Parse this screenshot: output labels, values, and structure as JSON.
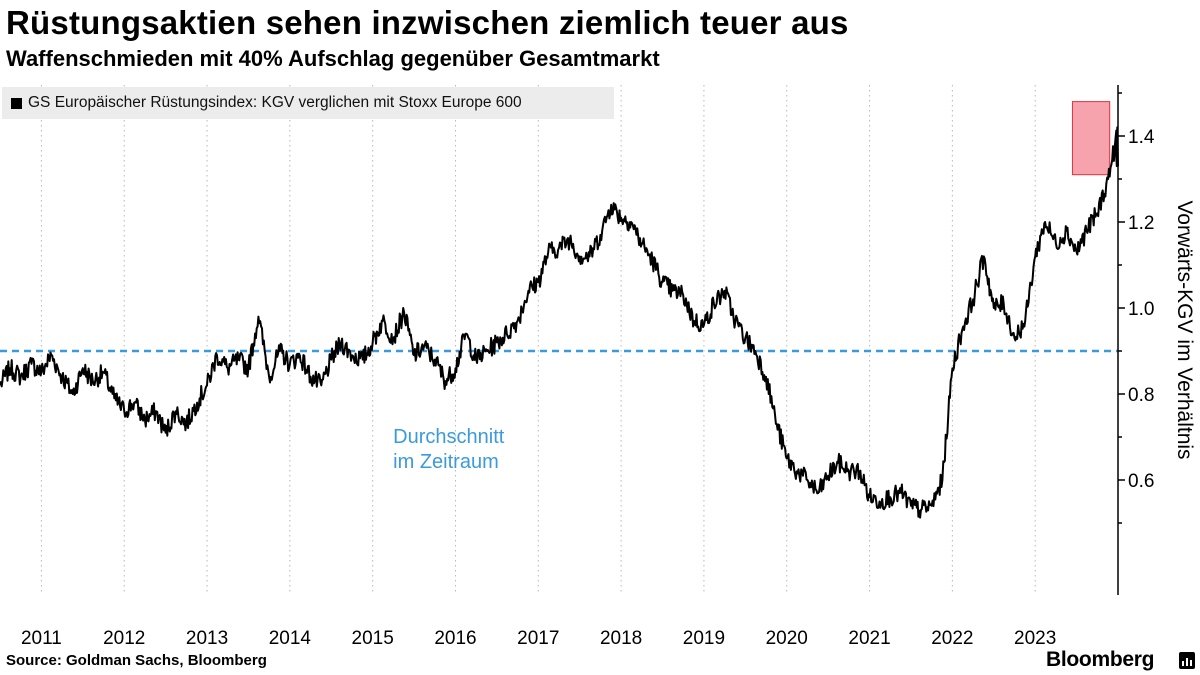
{
  "header": {
    "title": "Rüstungsaktien sehen inzwischen ziemlich teuer aus",
    "subtitle": "Waffenschmieden mit 40% Aufschlag gegenüber Gesamtmarkt"
  },
  "footer": {
    "source": "Source: Goldman Sachs, Bloomberg",
    "brand": "Bloomberg"
  },
  "colors": {
    "line": "#000000",
    "average": "#3a9bdc",
    "highlight_fill": "#f7a3ad",
    "highlight_stroke": "#e0323f",
    "axis": "#000000",
    "grid": "#b8b8b8",
    "legend_bg": "#ececec"
  },
  "chart_data": {
    "type": "line",
    "title": "Rüstungsaktien sehen inzwischen ziemlich teuer aus",
    "subtitle": "Waffenschmieden mit 40% Aufschlag gegenüber Gesamtmarkt",
    "ylabel": "Vorwärts-KGV im Verhältnis",
    "ylim": [
      0.45,
      1.5
    ],
    "xlim": [
      2010.5,
      2024.0
    ],
    "y_ticks": [
      0.6,
      0.8,
      1.0,
      1.2,
      1.4
    ],
    "y_tick_labels": [
      "0.6",
      "0.8",
      "1.0",
      "1.2",
      "1.4"
    ],
    "x_ticks": [
      2011,
      2012,
      2013,
      2014,
      2015,
      2016,
      2017,
      2018,
      2019,
      2020,
      2021,
      2022,
      2023
    ],
    "x_tick_labels": [
      "2011",
      "2012",
      "2013",
      "2014",
      "2015",
      "2016",
      "2017",
      "2018",
      "2019",
      "2020",
      "2021",
      "2022",
      "2023"
    ],
    "grid": "vertical dashed lines at year boundaries",
    "legend": "top-left",
    "series": [
      {
        "name": "GS Europäischer Rüstungsindex: KGV verglichen mit Stoxx Europe 600",
        "x": [
          2010.5,
          2010.62,
          2010.75,
          2010.88,
          2011.0,
          2011.12,
          2011.25,
          2011.38,
          2011.5,
          2011.62,
          2011.75,
          2011.88,
          2012.0,
          2012.12,
          2012.25,
          2012.38,
          2012.5,
          2012.62,
          2012.75,
          2012.88,
          2013.0,
          2013.12,
          2013.25,
          2013.38,
          2013.5,
          2013.62,
          2013.75,
          2013.88,
          2014.0,
          2014.12,
          2014.25,
          2014.38,
          2014.5,
          2014.62,
          2014.75,
          2014.88,
          2015.0,
          2015.12,
          2015.25,
          2015.38,
          2015.5,
          2015.62,
          2015.75,
          2015.88,
          2016.0,
          2016.12,
          2016.25,
          2016.38,
          2016.5,
          2016.62,
          2016.75,
          2016.88,
          2017.0,
          2017.12,
          2017.25,
          2017.38,
          2017.5,
          2017.62,
          2017.75,
          2017.88,
          2018.0,
          2018.12,
          2018.25,
          2018.38,
          2018.5,
          2018.62,
          2018.75,
          2018.88,
          2019.0,
          2019.12,
          2019.25,
          2019.38,
          2019.5,
          2019.62,
          2019.75,
          2019.88,
          2020.0,
          2020.12,
          2020.25,
          2020.38,
          2020.5,
          2020.62,
          2020.75,
          2020.88,
          2021.0,
          2021.12,
          2021.25,
          2021.38,
          2021.5,
          2021.62,
          2021.75,
          2021.88,
          2022.0,
          2022.12,
          2022.25,
          2022.38,
          2022.5,
          2022.62,
          2022.75,
          2022.88,
          2023.0,
          2023.12,
          2023.25,
          2023.38,
          2023.5,
          2023.62,
          2023.75,
          2023.88,
          2024.0
        ],
        "values": [
          0.82,
          0.86,
          0.84,
          0.87,
          0.85,
          0.89,
          0.84,
          0.8,
          0.86,
          0.83,
          0.85,
          0.79,
          0.76,
          0.78,
          0.74,
          0.76,
          0.71,
          0.76,
          0.73,
          0.78,
          0.82,
          0.89,
          0.86,
          0.88,
          0.86,
          0.98,
          0.84,
          0.9,
          0.87,
          0.89,
          0.84,
          0.82,
          0.88,
          0.92,
          0.89,
          0.88,
          0.92,
          0.97,
          0.93,
          0.99,
          0.89,
          0.91,
          0.88,
          0.83,
          0.86,
          0.94,
          0.88,
          0.9,
          0.92,
          0.94,
          0.97,
          1.04,
          1.06,
          1.13,
          1.14,
          1.16,
          1.12,
          1.12,
          1.17,
          1.24,
          1.21,
          1.2,
          1.15,
          1.11,
          1.06,
          1.04,
          1.03,
          0.97,
          0.96,
          1.01,
          1.04,
          0.97,
          0.93,
          0.9,
          0.84,
          0.73,
          0.65,
          0.62,
          0.6,
          0.57,
          0.61,
          0.64,
          0.62,
          0.62,
          0.56,
          0.55,
          0.56,
          0.57,
          0.54,
          0.53,
          0.54,
          0.6,
          0.86,
          0.95,
          1.02,
          1.12,
          1.0,
          1.01,
          0.93,
          0.97,
          1.12,
          1.2,
          1.15,
          1.18,
          1.13,
          1.18,
          1.22,
          1.3,
          1.41
        ]
      },
      {
        "name": "Durchschnitt im Zeitraum",
        "type": "hline",
        "values": [
          0.9
        ]
      }
    ],
    "annotations": [
      {
        "text_line1": "Durchschnitt",
        "text_line2": "im Zeitraum",
        "x": 2016.6,
        "y": 0.815
      },
      {
        "type": "highlight-box",
        "x0": 2023.45,
        "x1": 2023.9,
        "y0": 1.31,
        "y1": 1.48
      }
    ]
  }
}
